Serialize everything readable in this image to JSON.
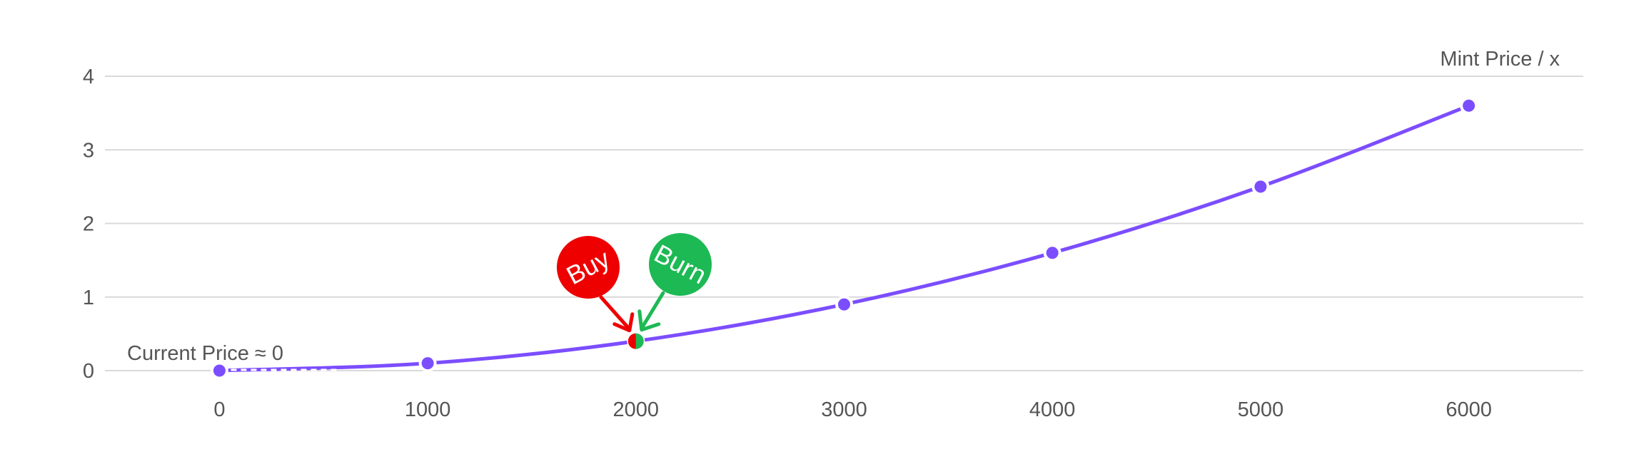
{
  "chart_data": {
    "type": "line",
    "title": "",
    "xlabel": "",
    "ylabel": "Mint Price / x",
    "xlim": [
      -550,
      6550
    ],
    "ylim": [
      0,
      4
    ],
    "x_ticks": [
      0,
      1000,
      2000,
      3000,
      4000,
      5000,
      6000
    ],
    "y_ticks": [
      0,
      1,
      2,
      3,
      4
    ],
    "grid": true,
    "series": [
      {
        "x": [
          0,
          1000,
          2000,
          3000,
          4000,
          5000,
          6000
        ],
        "values": [
          0,
          0.1,
          0.4,
          0.9,
          1.6,
          2.5,
          3.6
        ],
        "color": "#7c4dff"
      }
    ],
    "current_price": {
      "label": "Current Price ≈ 0",
      "x": 0,
      "y": 0
    },
    "markers": [
      {
        "label": "Buy",
        "x": 2000,
        "y": 0.4,
        "color": "#ee0000"
      },
      {
        "label": "Burn",
        "x": 2000,
        "y": 0.4,
        "color": "#1db954"
      }
    ],
    "colors": {
      "line": "#7c4dff",
      "grid": "#d9d9d9",
      "text": "#555555",
      "buy": "#ee0000",
      "burn": "#1db954"
    }
  }
}
